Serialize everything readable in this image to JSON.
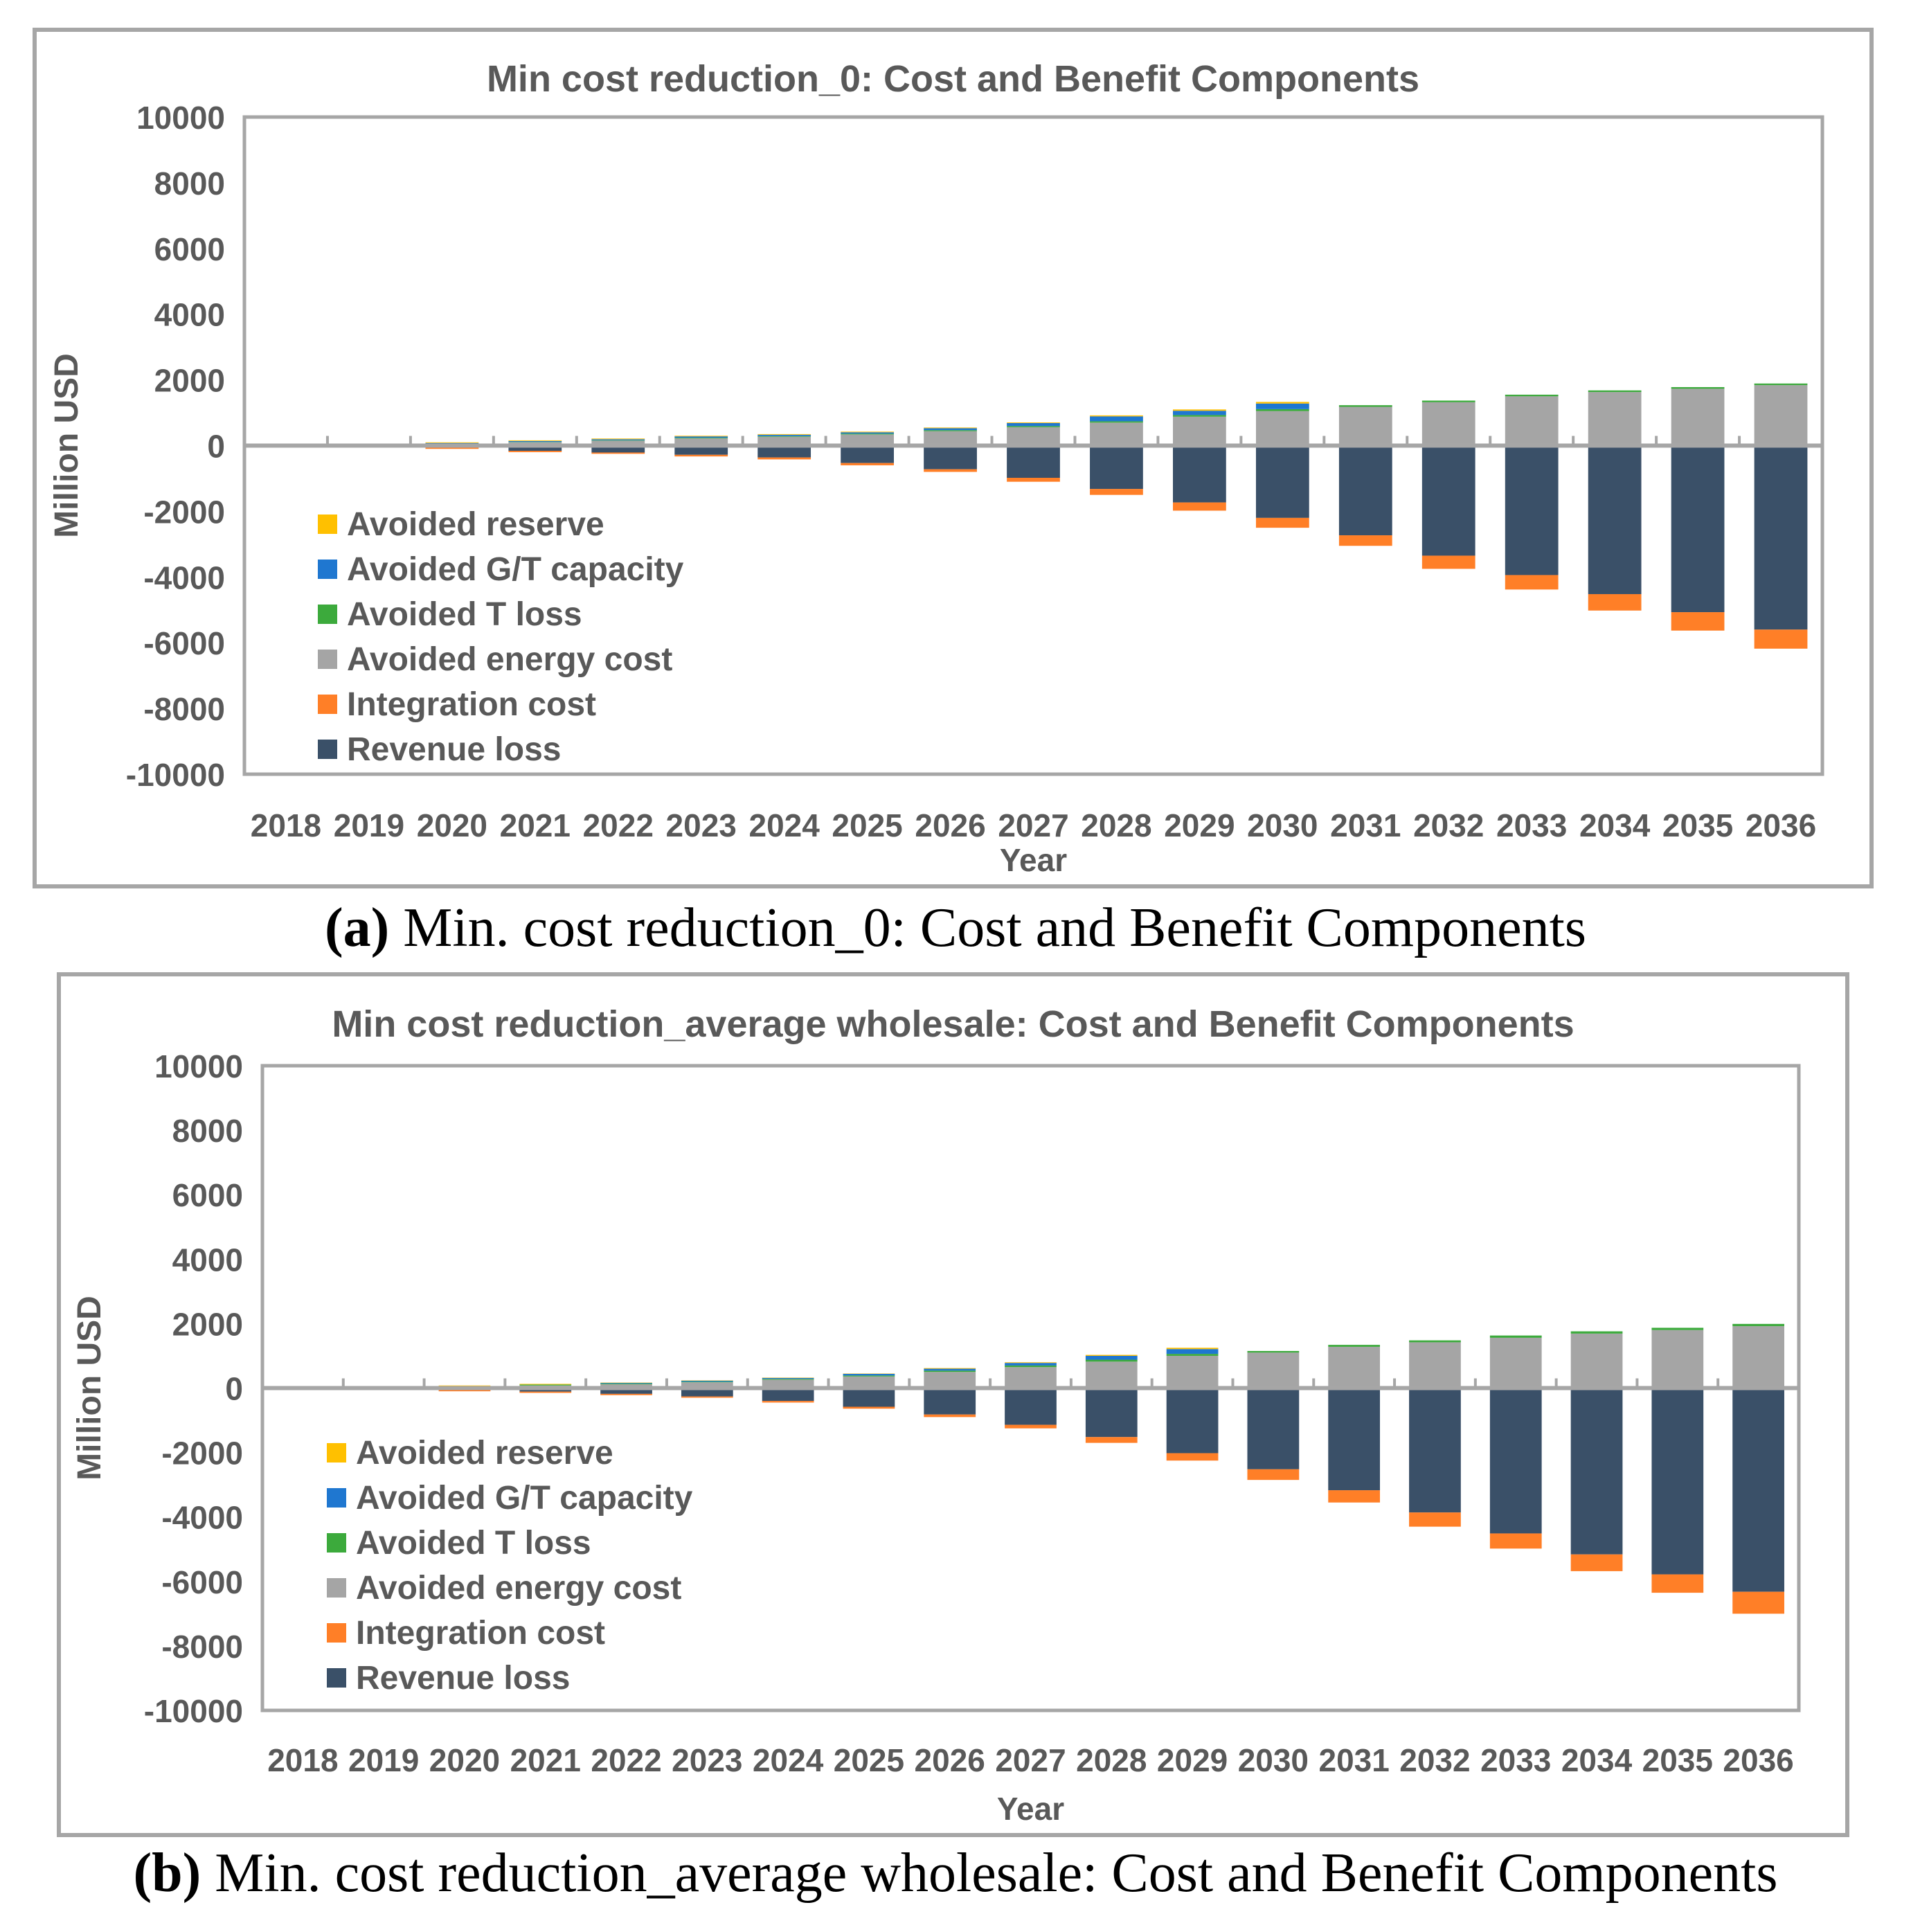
{
  "chart_data": [
    {
      "type": "bar",
      "stacked": true,
      "title": "Min cost reduction_0: Cost and Benefit Components",
      "xlabel": "Year",
      "ylabel": "Million USD",
      "ylim": [
        -10000,
        10000
      ],
      "yticks": [
        "10000",
        "8000",
        "6000",
        "4000",
        "2000",
        "0",
        "-2000",
        "-4000",
        "-6000",
        "-8000",
        "-10000"
      ],
      "ytick_values": [
        10000,
        8000,
        6000,
        4000,
        2000,
        0,
        -2000,
        -4000,
        -6000,
        -8000,
        -10000
      ],
      "legend_position": "lower-left",
      "categories": [
        "2018",
        "2019",
        "2020",
        "2021",
        "2022",
        "2023",
        "2024",
        "2025",
        "2026",
        "2027",
        "2028",
        "2029",
        "2030",
        "2031",
        "2032",
        "2033",
        "2034",
        "2035",
        "2036"
      ],
      "series": [
        {
          "name": "Avoided reserve",
          "color": "#FFC000",
          "values": [
            0,
            50,
            20,
            20,
            20,
            20,
            20,
            20,
            20,
            20,
            30,
            40,
            50,
            0,
            0,
            0,
            0,
            0,
            0
          ]
        },
        {
          "name": "Avoided G/T capacity",
          "color": "#1F77D0",
          "values": [
            0,
            0,
            30,
            30,
            30,
            40,
            40,
            40,
            60,
            90,
            150,
            130,
            170,
            0,
            0,
            0,
            0,
            0,
            0
          ]
        },
        {
          "name": "Avoided T loss",
          "color": "#3CAA3C",
          "values": [
            0,
            0,
            10,
            10,
            15,
            20,
            20,
            25,
            30,
            35,
            40,
            50,
            60,
            50,
            50,
            50,
            50,
            50,
            50
          ]
        },
        {
          "name": "Avoided energy cost",
          "color": "#A5A5A5",
          "values": [
            0,
            0,
            40,
            100,
            150,
            220,
            270,
            340,
            440,
            560,
            700,
            880,
            1050,
            1180,
            1320,
            1500,
            1630,
            1730,
            1840
          ]
        },
        {
          "name": "Integration cost",
          "color": "#FF7F27",
          "values": [
            0,
            -50,
            -60,
            -40,
            -40,
            -50,
            -60,
            -70,
            -80,
            -120,
            -180,
            -250,
            -300,
            -320,
            -400,
            -440,
            -500,
            -560,
            -580
          ]
        },
        {
          "name": "Revenue loss",
          "color": "#3A5068",
          "values": [
            0,
            0,
            -40,
            -160,
            -210,
            -280,
            -360,
            -530,
            -720,
            -980,
            -1320,
            -1730,
            -2200,
            -2730,
            -3350,
            -3940,
            -4520,
            -5070,
            -5600
          ]
        }
      ],
      "caption_label": "(a)",
      "caption_text": " Min. cost reduction_0: Cost and Benefit Components"
    },
    {
      "type": "bar",
      "stacked": true,
      "title": "Min cost reduction_average wholesale: Cost and Benefit Components",
      "xlabel": "Year",
      "ylabel": "Million USD",
      "ylim": [
        -10000,
        10000
      ],
      "yticks": [
        "10000",
        "8000",
        "6000",
        "4000",
        "2000",
        "0",
        "-2000",
        "-4000",
        "-6000",
        "-8000",
        "-10000"
      ],
      "ytick_values": [
        10000,
        8000,
        6000,
        4000,
        2000,
        0,
        -2000,
        -4000,
        -6000,
        -8000,
        -10000
      ],
      "legend_position": "lower-left",
      "categories": [
        "2018",
        "2019",
        "2020",
        "2021",
        "2022",
        "2023",
        "2024",
        "2025",
        "2026",
        "2027",
        "2028",
        "2029",
        "2030",
        "2031",
        "2032",
        "2033",
        "2034",
        "2035",
        "2036"
      ],
      "series": [
        {
          "name": "Avoided reserve",
          "color": "#FFC000",
          "values": [
            0,
            0,
            20,
            20,
            10,
            10,
            10,
            10,
            20,
            20,
            30,
            40,
            0,
            0,
            0,
            0,
            0,
            0,
            0
          ]
        },
        {
          "name": "Avoided G/T capacity",
          "color": "#1F77D0",
          "values": [
            0,
            0,
            10,
            0,
            20,
            30,
            30,
            50,
            60,
            80,
            120,
            150,
            0,
            0,
            0,
            0,
            0,
            0,
            0
          ]
        },
        {
          "name": "Avoided T loss",
          "color": "#3CAA3C",
          "values": [
            0,
            0,
            10,
            30,
            20,
            20,
            25,
            30,
            40,
            50,
            60,
            60,
            50,
            60,
            60,
            70,
            70,
            70,
            70
          ]
        },
        {
          "name": "Avoided energy cost",
          "color": "#A5A5A5",
          "values": [
            0,
            0,
            40,
            80,
            120,
            180,
            260,
            360,
            500,
            650,
            820,
            1000,
            1100,
            1280,
            1420,
            1560,
            1690,
            1800,
            1920
          ]
        },
        {
          "name": "Integration cost",
          "color": "#FF7F27",
          "values": [
            0,
            -50,
            -50,
            -40,
            -40,
            -40,
            -50,
            -60,
            -80,
            -110,
            -180,
            -230,
            -330,
            -380,
            -440,
            -470,
            -520,
            -570,
            -680
          ]
        },
        {
          "name": "Revenue loss",
          "color": "#3A5068",
          "values": [
            0,
            0,
            -50,
            -110,
            -180,
            -260,
            -400,
            -580,
            -820,
            -1140,
            -1520,
            -2020,
            -2520,
            -3170,
            -3860,
            -4510,
            -5160,
            -5780,
            -6320
          ]
        }
      ],
      "caption_label": "(b)",
      "caption_text": " Min. cost reduction_average wholesale: Cost and Benefit Components"
    }
  ]
}
